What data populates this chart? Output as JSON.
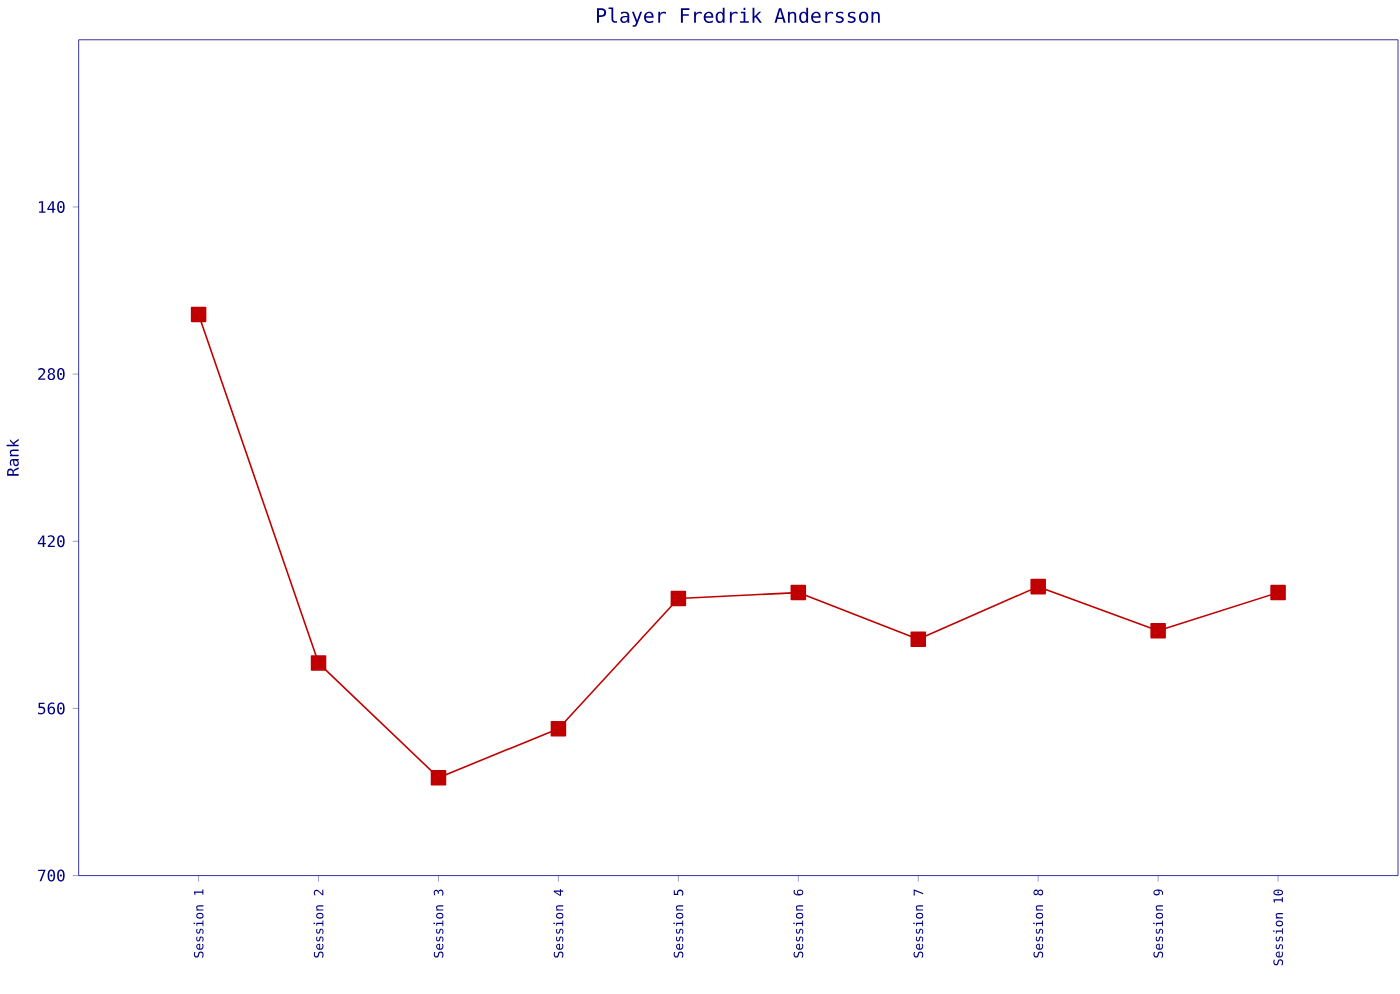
{
  "chart_data": {
    "type": "line",
    "title": "Player Fredrik Andersson",
    "ylabel": "Rank",
    "categories": [
      "Session 1",
      "Session 2",
      "Session 3",
      "Session 4",
      "Session 5",
      "Session 6",
      "Session 7",
      "Session 8",
      "Session 9",
      "Session 10"
    ],
    "series": [
      {
        "color": "#c00000",
        "values": [
          230,
          522,
          618,
          577,
          468,
          463,
          502,
          458,
          495,
          463
        ]
      }
    ],
    "ylim": [
      700,
      0
    ],
    "yticks": [
      140,
      280,
      420,
      560,
      700
    ],
    "grid": false,
    "marker": "square",
    "line_style": "solid"
  }
}
